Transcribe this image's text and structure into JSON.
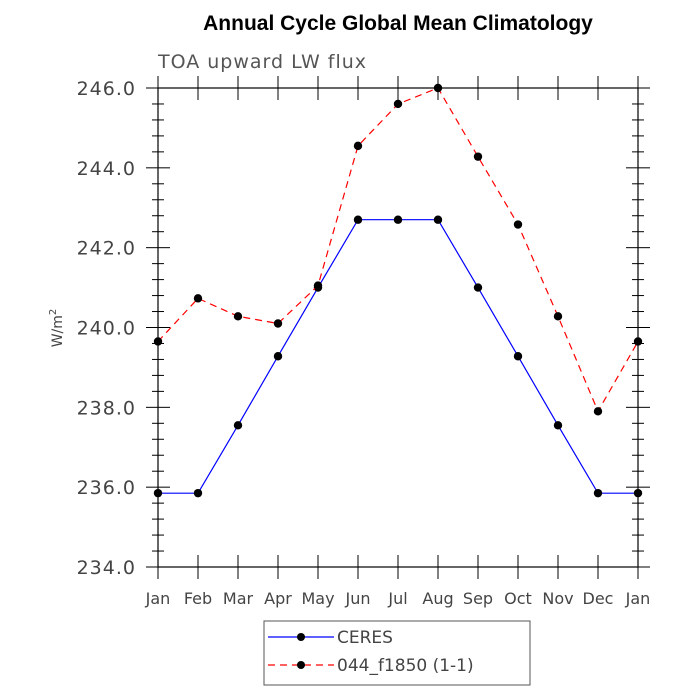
{
  "chart_data": {
    "type": "line",
    "title": "Annual Cycle Global Mean Climatology",
    "subtitle": "TOA upward LW flux",
    "ylabel": "W/m",
    "ylabel_sup": "2",
    "xlabel": "",
    "categories": [
      "Jan",
      "Feb",
      "Mar",
      "Apr",
      "May",
      "Jun",
      "Jul",
      "Aug",
      "Sep",
      "Oct",
      "Nov",
      "Dec",
      "Jan"
    ],
    "ylim": [
      234.0,
      246.0
    ],
    "yticks": [
      "234.0",
      "236.0",
      "238.0",
      "240.0",
      "242.0",
      "244.0",
      "246.0"
    ],
    "ytick_values": [
      234,
      236,
      238,
      240,
      242,
      244,
      246
    ],
    "grid": false,
    "legend_position": "bottom-center",
    "series": [
      {
        "name": "CERES",
        "color": "#0000ff",
        "dash": "solid",
        "values": [
          235.85,
          235.85,
          237.55,
          239.28,
          241.0,
          242.7,
          242.7,
          242.7,
          241.0,
          239.28,
          237.55,
          235.85,
          235.85
        ]
      },
      {
        "name": "044_f1850 (1-1)",
        "color": "#ff0000",
        "dash": "dashed",
        "values": [
          239.65,
          240.73,
          240.28,
          240.1,
          241.05,
          244.55,
          245.6,
          246.0,
          244.28,
          242.58,
          240.28,
          237.9,
          239.65
        ]
      }
    ]
  }
}
